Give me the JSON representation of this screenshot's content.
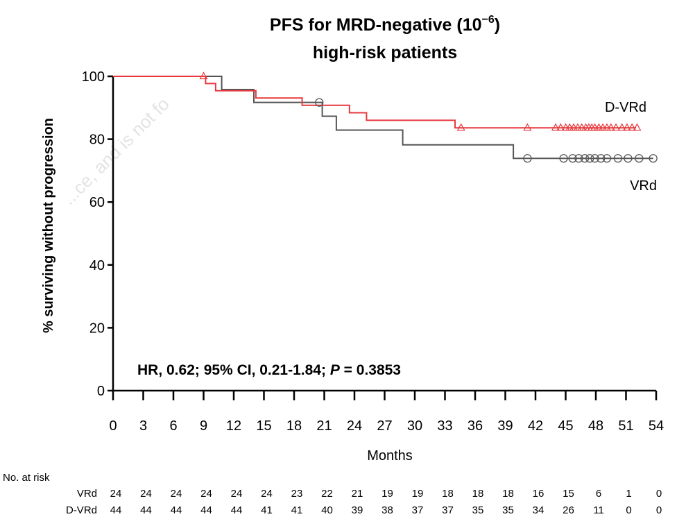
{
  "watermark": "...ce, and is not fo",
  "chart_data": {
    "type": "line",
    "title_main": "PFS for MRD-negative (10",
    "title_sup": "−6",
    "title_close": ")",
    "title_line2": "high-risk patients",
    "ylabel": "% surviving without progression",
    "xlabel": "Months",
    "xlim": [
      0,
      54
    ],
    "ylim": [
      0,
      100
    ],
    "x_ticks": [
      0,
      3,
      6,
      9,
      12,
      15,
      18,
      21,
      24,
      27,
      30,
      33,
      36,
      39,
      42,
      45,
      48,
      51,
      54
    ],
    "y_ticks": [
      0,
      20,
      40,
      60,
      80,
      100
    ],
    "grid": false,
    "annotation": {
      "prefix": "HR, 0.62; 95% CI, 0.21-1.84; ",
      "p_label": "P",
      "suffix": " = 0.3853"
    },
    "series": [
      {
        "name": "D-VRd",
        "color": "#e8383d",
        "marker": "triangle",
        "label_position": "right-above",
        "steps": [
          [
            0,
            100
          ],
          [
            9.2,
            100
          ],
          [
            9.2,
            97.7
          ],
          [
            10.2,
            97.7
          ],
          [
            10.2,
            95.4
          ],
          [
            14.2,
            95.4
          ],
          [
            14.2,
            93.1
          ],
          [
            18.8,
            93.1
          ],
          [
            18.8,
            90.8
          ],
          [
            23.5,
            90.8
          ],
          [
            23.5,
            88.4
          ],
          [
            25.2,
            88.4
          ],
          [
            25.2,
            86
          ],
          [
            34,
            86
          ],
          [
            34,
            83.6
          ],
          [
            52,
            83.6
          ]
        ],
        "censored_x": [
          9,
          34.6,
          41.2,
          44,
          44.5,
          45,
          45.4,
          45.8,
          46.2,
          46.6,
          47,
          47.3,
          47.6,
          47.9,
          48.3,
          48.7,
          49.1,
          49.5,
          50,
          50.6,
          51.1,
          51.6,
          52.1
        ]
      },
      {
        "name": "VRd",
        "color": "#555555",
        "marker": "circle",
        "label_position": "right-below",
        "steps": [
          [
            0,
            100
          ],
          [
            10.8,
            100
          ],
          [
            10.8,
            95.8
          ],
          [
            14,
            95.8
          ],
          [
            14,
            91.7
          ],
          [
            20.8,
            91.7
          ],
          [
            20.8,
            87.3
          ],
          [
            22.2,
            87.3
          ],
          [
            22.2,
            82.9
          ],
          [
            28.8,
            82.9
          ],
          [
            28.8,
            78.2
          ],
          [
            39.8,
            78.2
          ],
          [
            39.8,
            73.9
          ],
          [
            53.7,
            73.9
          ]
        ],
        "censored_x": [
          20.5,
          41.2,
          44.8,
          45.7,
          46.3,
          46.9,
          47.4,
          47.9,
          48.5,
          49.1,
          50.2,
          51.2,
          52.3,
          53.7
        ]
      }
    ],
    "risk_table": {
      "title": "No. at risk",
      "rows": [
        {
          "label": "VRd",
          "values": [
            24,
            24,
            24,
            24,
            24,
            24,
            23,
            22,
            21,
            19,
            19,
            18,
            18,
            18,
            16,
            15,
            6,
            1,
            0
          ]
        },
        {
          "label": "D-VRd",
          "values": [
            44,
            44,
            44,
            44,
            44,
            41,
            41,
            40,
            39,
            38,
            37,
            37,
            35,
            35,
            34,
            26,
            11,
            0,
            0
          ]
        }
      ]
    }
  }
}
